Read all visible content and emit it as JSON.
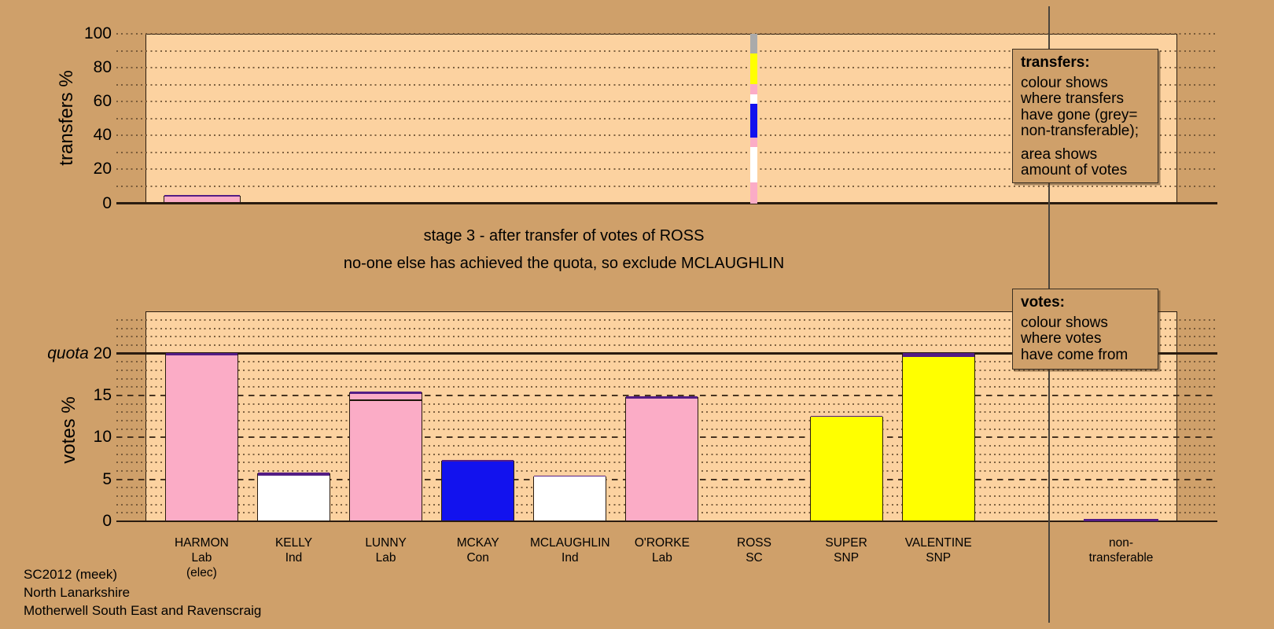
{
  "colors": {
    "background": "#cfa06a",
    "plot_background": "#fcd2a0",
    "lab": "#fbacc6",
    "ind": "#ffffff",
    "con": "#1212ee",
    "snp": "#ffff00",
    "sc": "#531d85",
    "grey": "#aaaaaa",
    "line": "#1f150b",
    "outline": "#2a1c10"
  },
  "transfers_chart": {
    "axis_label": "transfers %",
    "yticks": [
      0,
      20,
      40,
      60,
      80,
      100
    ],
    "bars": [
      {
        "candidate": "HARMON",
        "outlined": true,
        "segments": [
          {
            "color": "lab",
            "value": 3.45
          },
          {
            "color": "sc",
            "value": 0.95
          }
        ]
      },
      {
        "candidate": "ROSS",
        "outlined": false,
        "segments": [
          {
            "color": "lab",
            "value": 12.4
          },
          {
            "color": "ind",
            "value": 20.9
          },
          {
            "color": "lab",
            "value": 5.4
          },
          {
            "color": "con",
            "value": 20.1
          },
          {
            "color": "ind",
            "value": 5.5
          },
          {
            "color": "lab",
            "value": 6.1
          },
          {
            "color": "snp",
            "value": 17.8
          },
          {
            "color": "grey",
            "value": 11.8
          }
        ]
      }
    ]
  },
  "transfers_legend": {
    "title": "transfers:",
    "body1": "colour shows\nwhere transfers\nhave gone (grey=\nnon-transferable);",
    "body2": "area shows\namount of votes"
  },
  "stage": {
    "line1": "stage 3 - after transfer of votes of ROSS",
    "line2": "no-one else has achieved the quota, so exclude MCLAUGHLIN"
  },
  "votes_chart": {
    "axis_label": "votes %",
    "quota_label": "quota",
    "quota_value": "20",
    "quota": 20,
    "yticks": [
      0,
      5,
      10,
      15
    ],
    "candidates": [
      {
        "name": "HARMON",
        "party": "Lab",
        "note": "(elec)",
        "total": 20.0,
        "segments": [
          {
            "color": "lab",
            "value": 19.72
          },
          {
            "color": "sc",
            "value": 0.28
          }
        ]
      },
      {
        "name": "KELLY",
        "party": "Ind",
        "note": "",
        "total": 5.75,
        "segments": [
          {
            "color": "ind",
            "value": 5.35
          },
          {
            "color": "sc",
            "value": 0.4
          }
        ]
      },
      {
        "name": "LUNNY",
        "party": "Lab",
        "note": "",
        "total": 15.35,
        "segments": [
          {
            "color": "lab",
            "value": 14.25
          },
          {
            "color": "line",
            "value": 0.18
          },
          {
            "color": "lab",
            "value": 0.64
          },
          {
            "color": "sc",
            "value": 0.28
          }
        ]
      },
      {
        "name": "MCKAY",
        "party": "Con",
        "note": "",
        "total": 7.25,
        "segments": [
          {
            "color": "con",
            "value": 7.05
          },
          {
            "color": "sc",
            "value": 0.2
          }
        ]
      },
      {
        "name": "MCLAUGHLIN",
        "party": "Ind",
        "note": "",
        "total": 5.37,
        "segments": [
          {
            "color": "ind",
            "value": 5.27
          },
          {
            "color": "sc",
            "value": 0.1
          }
        ]
      },
      {
        "name": "O'RORKE",
        "party": "Lab",
        "note": "",
        "total": 14.8,
        "segments": [
          {
            "color": "lab",
            "value": 14.55
          },
          {
            "color": "sc",
            "value": 0.25
          }
        ]
      },
      {
        "name": "ROSS",
        "party": "SC",
        "note": "",
        "total": 0,
        "segments": []
      },
      {
        "name": "SUPER",
        "party": "SNP",
        "note": "",
        "total": 12.46,
        "segments": [
          {
            "color": "snp",
            "value": 12.34
          },
          {
            "color": "sc",
            "value": 0.12
          }
        ]
      },
      {
        "name": "VALENTINE",
        "party": "SNP",
        "note": "",
        "total": 19.95,
        "segments": [
          {
            "color": "snp",
            "value": 19.5
          },
          {
            "color": "sc",
            "value": 0.45
          }
        ]
      }
    ],
    "non_transferable": {
      "label_line1": "non-",
      "label_line2": "transferable",
      "total": 0.25,
      "color": "sc"
    }
  },
  "votes_legend": {
    "title": "votes:",
    "body": "colour shows\nwhere votes\nhave come from"
  },
  "footer": {
    "lines": [
      "SC2012 (meek)",
      "North Lanarkshire",
      "Motherwell South East and Ravenscraig"
    ]
  },
  "chart_data": [
    {
      "type": "bar",
      "id": "transfers",
      "title": "transfers at stage 3",
      "ylabel": "transfers %",
      "ylim": [
        0,
        100
      ],
      "yticks": [
        0,
        20,
        40,
        60,
        80,
        100
      ],
      "grid": "dotted every 10",
      "description": "stacked bars show where each transferring candidate's votes went; bar width/area proportional to amount of votes",
      "bars": [
        {
          "candidate": "HARMON",
          "total_pct": 4.4,
          "stack_bottom_to_top": [
            {
              "to": "Lab (pink)",
              "pct": 3.45
            },
            {
              "to": "SC (purple)",
              "pct": 0.95
            }
          ]
        },
        {
          "candidate": "ROSS",
          "total_pct": 100,
          "stack_bottom_to_top": [
            {
              "to": "HARMON Lab (pink)",
              "pct": 12.4
            },
            {
              "to": "KELLY Ind (white)",
              "pct": 20.9
            },
            {
              "to": "LUNNY Lab (pink)",
              "pct": 5.4
            },
            {
              "to": "MCKAY Con (blue)",
              "pct": 20.1
            },
            {
              "to": "MCLAUGHLIN Ind (white)",
              "pct": 5.5
            },
            {
              "to": "O'RORKE Lab (pink)",
              "pct": 6.1
            },
            {
              "to": "SUPER/VALENTINE SNP (yellow)",
              "pct": 17.8
            },
            {
              "to": "non-transferable (grey)",
              "pct": 11.8
            }
          ]
        }
      ]
    },
    {
      "type": "bar",
      "id": "votes",
      "title": "votes % after stage 3",
      "ylabel": "votes %",
      "ylim": [
        0,
        25
      ],
      "yticks": [
        0,
        5,
        10,
        15,
        20
      ],
      "quota": 20,
      "grid": "dotted every 1, dashed every 5, solid quota line at 20",
      "categories": [
        "HARMON Lab (elec)",
        "KELLY Ind",
        "LUNNY Lab",
        "MCKAY Con",
        "MCLAUGHLIN Ind",
        "O'RORKE Lab",
        "ROSS SC",
        "SUPER SNP",
        "VALENTINE SNP",
        "non-transferable"
      ],
      "values": [
        20.0,
        5.75,
        15.35,
        7.25,
        5.37,
        14.8,
        0,
        12.46,
        19.95,
        0.25
      ]
    }
  ]
}
